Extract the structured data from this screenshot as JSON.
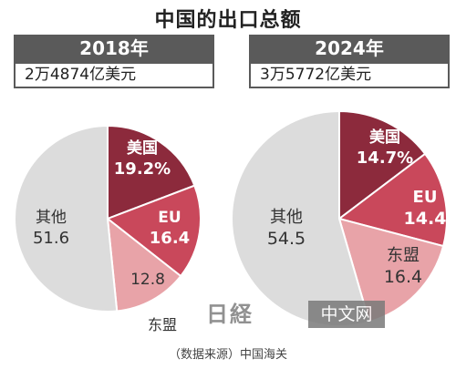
{
  "header": {
    "title": "中国的出口总额"
  },
  "panels": [
    {
      "year": "2018年",
      "total": "2万4874亿美元"
    },
    {
      "year": "2024年",
      "total": "3万5772亿美元"
    }
  ],
  "source": "（数据来源）中国海关",
  "watermark": {
    "logo": "日経",
    "text": "中文网"
  },
  "colors": {
    "usa": "#8c2a3c",
    "eu": "#c9485b",
    "asean": "#e8a3a8",
    "other": "#dcdcdc"
  },
  "chart_data": [
    {
      "type": "pie",
      "title": "2018年",
      "subtitle": "2万4874亿美元",
      "slices": [
        {
          "label": "美国",
          "value": 19.2,
          "display": "19.2%"
        },
        {
          "label": "EU",
          "value": 16.4,
          "display": "16.4"
        },
        {
          "label": "东盟",
          "value": 12.8,
          "display": "12.8"
        },
        {
          "label": "其他",
          "value": 51.6,
          "display": "51.6"
        }
      ]
    },
    {
      "type": "pie",
      "title": "2024年",
      "subtitle": "3万5772亿美元",
      "slices": [
        {
          "label": "美国",
          "value": 14.7,
          "display": "14.7%"
        },
        {
          "label": "EU",
          "value": 14.4,
          "display": "14.4"
        },
        {
          "label": "东盟",
          "value": 16.4,
          "display": "16.4"
        },
        {
          "label": "其他",
          "value": 54.5,
          "display": "54.5"
        }
      ]
    }
  ]
}
